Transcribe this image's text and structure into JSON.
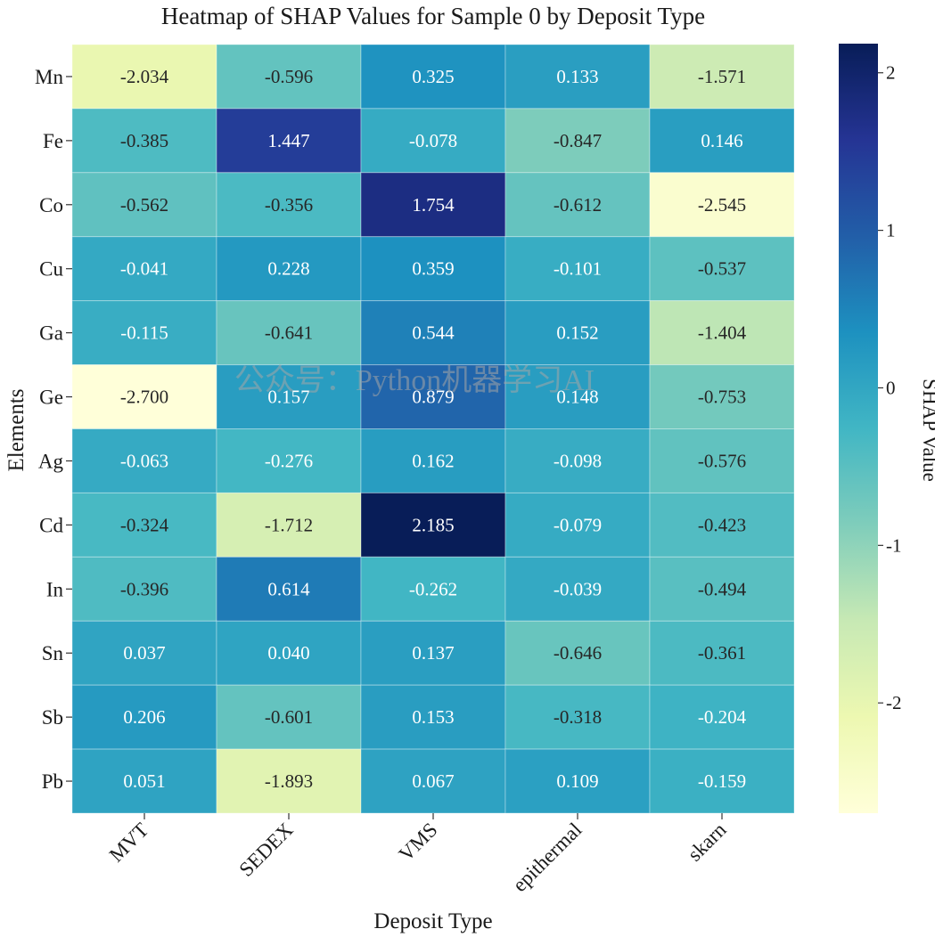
{
  "chart_data": {
    "type": "heatmap",
    "title": "Heatmap of SHAP Values for Sample 0 by Deposit Type",
    "xlabel": "Deposit Type",
    "ylabel": "Elements",
    "colorbar_label": "SHAP Value",
    "colormap": "YlGnBu",
    "vmin": -2.7,
    "vmax": 2.185,
    "colorbar_ticks": [
      2,
      1,
      0,
      -1,
      -2
    ],
    "x_categories": [
      "MVT",
      "SEDEX",
      "VMS",
      "epithermal",
      "skarn"
    ],
    "y_categories": [
      "Mn",
      "Fe",
      "Co",
      "Cu",
      "Ga",
      "Ge",
      "Ag",
      "Cd",
      "In",
      "Sn",
      "Sb",
      "Pb"
    ],
    "values": [
      [
        -2.034,
        -0.596,
        0.325,
        0.133,
        -1.571
      ],
      [
        -0.385,
        1.447,
        -0.078,
        -0.847,
        0.146
      ],
      [
        -0.562,
        -0.356,
        1.754,
        -0.612,
        -2.545
      ],
      [
        -0.041,
        0.228,
        0.359,
        -0.101,
        -0.537
      ],
      [
        -0.115,
        -0.641,
        0.544,
        0.152,
        -1.404
      ],
      [
        -2.7,
        0.157,
        0.879,
        0.148,
        -0.753
      ],
      [
        -0.063,
        -0.276,
        0.162,
        -0.098,
        -0.576
      ],
      [
        -0.324,
        -1.712,
        2.185,
        -0.079,
        -0.423
      ],
      [
        -0.396,
        0.614,
        -0.262,
        -0.039,
        -0.494
      ],
      [
        0.037,
        0.04,
        0.137,
        -0.646,
        -0.361
      ],
      [
        0.206,
        -0.601,
        0.153,
        -0.318,
        -0.204
      ],
      [
        0.051,
        -1.893,
        0.067,
        0.109,
        -0.159
      ]
    ],
    "annotation_format": "3 decimals"
  },
  "watermark": "公众号：Python机器学习AI"
}
